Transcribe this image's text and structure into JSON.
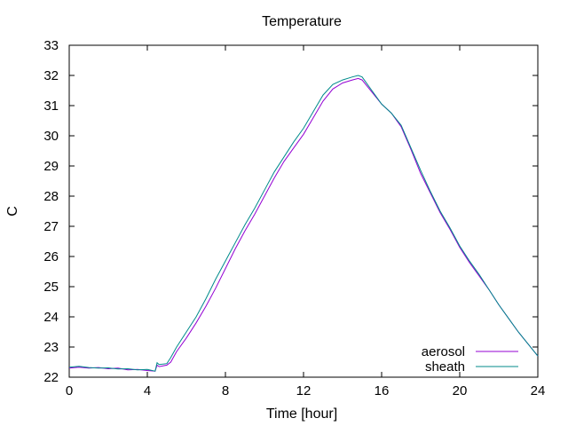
{
  "chart_data": {
    "type": "line",
    "title": "Temperature",
    "xlabel": "Time [hour]",
    "ylabel": "C",
    "xlim": [
      0,
      24
    ],
    "ylim": [
      22,
      33
    ],
    "xticks": [
      0,
      4,
      8,
      12,
      16,
      20,
      24
    ],
    "yticks": [
      22,
      23,
      24,
      25,
      26,
      27,
      28,
      29,
      30,
      31,
      32,
      33
    ],
    "grid": false,
    "legend_position": "bottom-right",
    "series": [
      {
        "name": "aerosol",
        "color": "#9400d3",
        "x": [
          0,
          0.5,
          1,
          1.5,
          2,
          2.5,
          3,
          3.5,
          4,
          4.4,
          4.5,
          4.6,
          5,
          5.2,
          5.5,
          6,
          6.5,
          7,
          7.5,
          8,
          8.5,
          9,
          9.5,
          10,
          10.5,
          11,
          11.5,
          12,
          12.5,
          13,
          13.5,
          14,
          14.5,
          14.8,
          15,
          15.5,
          16,
          16.5,
          17,
          17.5,
          18,
          18.5,
          19,
          19.5,
          20,
          20.5,
          21,
          21.5,
          22,
          22.5,
          23,
          23.5,
          24
        ],
        "y": [
          22.3,
          22.33,
          22.3,
          22.32,
          22.28,
          22.3,
          22.24,
          22.26,
          22.22,
          22.2,
          22.4,
          22.35,
          22.4,
          22.5,
          22.85,
          23.3,
          23.8,
          24.35,
          24.95,
          25.6,
          26.25,
          26.85,
          27.4,
          28.0,
          28.6,
          29.15,
          29.6,
          30.05,
          30.6,
          31.15,
          31.55,
          31.75,
          31.85,
          31.9,
          31.85,
          31.45,
          31.05,
          30.75,
          30.3,
          29.55,
          28.75,
          28.1,
          27.45,
          26.9,
          26.3,
          25.8,
          25.35,
          24.9,
          24.4,
          23.95,
          23.5,
          23.1,
          22.7
        ]
      },
      {
        "name": "sheath",
        "color": "#008b8b",
        "x": [
          0,
          0.5,
          1,
          1.5,
          2,
          2.5,
          3,
          3.5,
          4,
          4.4,
          4.5,
          4.6,
          5,
          5.2,
          5.5,
          6,
          6.5,
          7,
          7.5,
          8,
          8.5,
          9,
          9.5,
          10,
          10.5,
          11,
          11.5,
          12,
          12.5,
          13,
          13.5,
          14,
          14.5,
          14.8,
          15,
          15.5,
          16,
          16.5,
          17,
          17.5,
          18,
          18.5,
          19,
          19.5,
          20,
          20.5,
          21,
          21.5,
          22,
          22.5,
          23,
          23.5,
          24
        ],
        "y": [
          22.33,
          22.36,
          22.32,
          22.3,
          22.31,
          22.27,
          22.28,
          22.24,
          22.26,
          22.2,
          22.48,
          22.42,
          22.45,
          22.65,
          23.0,
          23.5,
          24.0,
          24.6,
          25.25,
          25.85,
          26.45,
          27.05,
          27.6,
          28.2,
          28.8,
          29.3,
          29.8,
          30.25,
          30.8,
          31.35,
          31.7,
          31.85,
          31.95,
          32.0,
          31.95,
          31.5,
          31.05,
          30.75,
          30.35,
          29.6,
          28.85,
          28.15,
          27.5,
          26.95,
          26.35,
          25.85,
          25.4,
          24.9,
          24.4,
          23.95,
          23.5,
          23.1,
          22.7
        ]
      }
    ]
  }
}
